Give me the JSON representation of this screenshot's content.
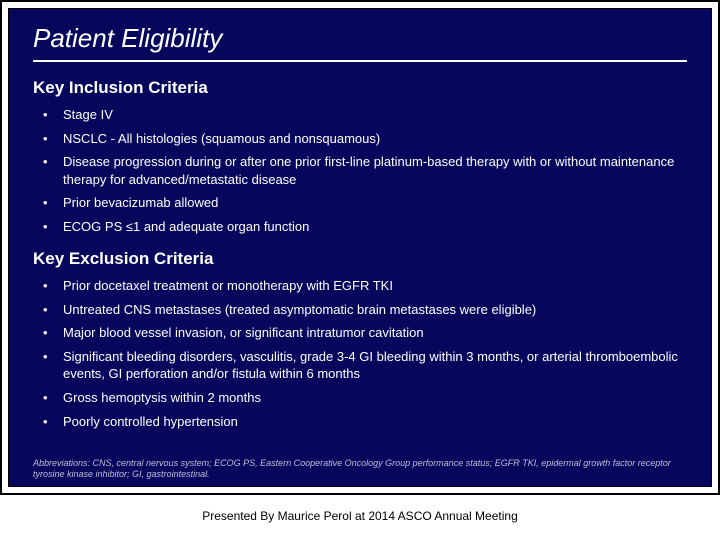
{
  "slide": {
    "title": "Patient Eligibility",
    "inclusion_heading": "Key Inclusion Criteria",
    "inclusion_items": [
      "Stage IV",
      "NSCLC - All histologies  (squamous and nonsquamous)",
      "Disease progression during or after one prior first-line platinum-based therapy with or without maintenance therapy for advanced/metastatic disease",
      "Prior bevacizumab allowed",
      "ECOG PS ≤1 and adequate organ function"
    ],
    "exclusion_heading": "Key Exclusion Criteria",
    "exclusion_items": [
      "Prior docetaxel treatment or monotherapy with EGFR TKI",
      "Untreated CNS metastases (treated asymptomatic brain metastases were eligible)",
      "Major blood vessel invasion, or significant intratumor cavitation",
      "Significant bleeding disorders, vasculitis, grade 3-4 GI bleeding within 3 months, or arterial thromboembolic events, GI perforation and/or fistula within 6 months",
      "Gross hemoptysis within 2 months",
      "Poorly controlled hypertension"
    ],
    "abbreviations": "Abbreviations: CNS, central nervous system; ECOG PS, Eastern Cooperative Oncology Group performance status; EGFR TKI, epidermal growth factor receptor tyrosine kinase inhibitor; GI, gastrointestinal."
  },
  "caption": "Presented By Maurice Perol at 2014 ASCO Annual Meeting",
  "style": {
    "slide_bg": "#06065c",
    "text_color": "#ffffff",
    "abbr_color": "#bfbfd8",
    "title_fontsize": 26,
    "heading_fontsize": 17,
    "bullet_fontsize": 13,
    "caption_fontsize": 12
  }
}
